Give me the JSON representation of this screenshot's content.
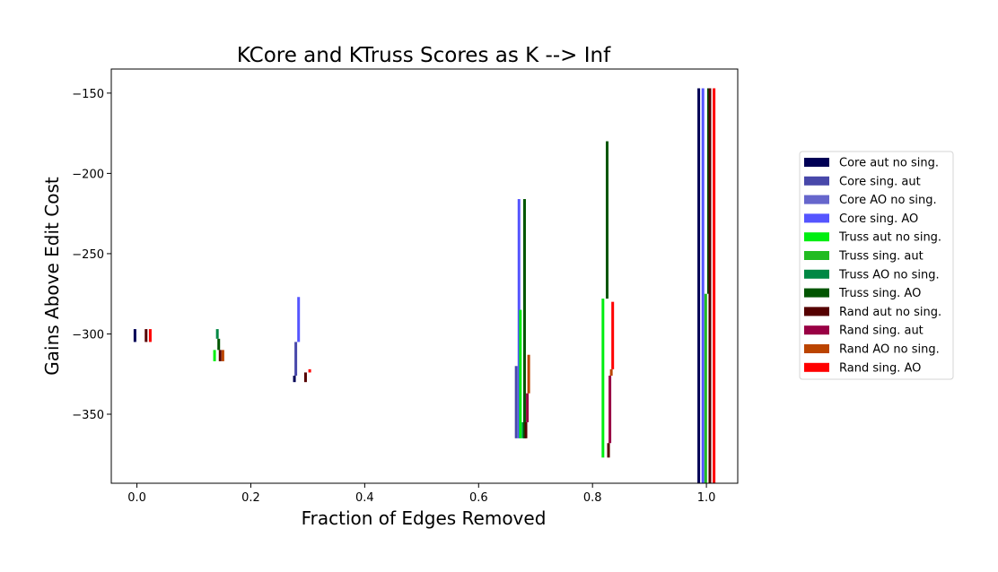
{
  "chart_data": {
    "type": "bar",
    "title": "KCore and KTruss Scores as K --> Inf",
    "xlabel": "Fraction of Edges Removed",
    "ylabel": "Gains Above Edit Cost",
    "xlim": [
      -0.045,
      1.055
    ],
    "ylim": [
      -393,
      -135
    ],
    "x_ticks": [
      0.0,
      0.2,
      0.4,
      0.6,
      0.8,
      1.0
    ],
    "x_tick_labels": [
      "0.0",
      "0.2",
      "0.4",
      "0.6",
      "0.8",
      "1.0"
    ],
    "y_ticks": [
      -150,
      -200,
      -250,
      -300,
      -350
    ],
    "y_tick_labels": [
      "−150",
      "−200",
      "−250",
      "−300",
      "−350"
    ],
    "legend_position": "right",
    "groups": [
      {
        "x": 0.01,
        "bars": [
          {
            "series": 0,
            "bottom": -305,
            "top": -297
          },
          {
            "series": 8,
            "bottom": -305,
            "top": -297
          },
          {
            "series": 11,
            "bottom": -305,
            "top": -297
          }
        ]
      },
      {
        "x": 0.14,
        "bars": [
          {
            "series": 4,
            "bottom": -317,
            "top": -310
          },
          {
            "series": 6,
            "bottom": -303,
            "top": -297
          },
          {
            "series": 7,
            "bottom": -310,
            "top": -303
          },
          {
            "series": 8,
            "bottom": -317,
            "top": -310
          },
          {
            "series": 10,
            "bottom": -317,
            "top": -310
          }
        ]
      },
      {
        "x": 0.29,
        "bars": [
          {
            "series": 0,
            "bottom": -330,
            "top": -326
          },
          {
            "series": 1,
            "bottom": -326,
            "top": -305
          },
          {
            "series": 3,
            "bottom": -305,
            "top": -277
          },
          {
            "series": 8,
            "bottom": -330,
            "top": -324
          },
          {
            "series": 11,
            "bottom": -324,
            "top": -322
          }
        ]
      },
      {
        "x": 0.677,
        "bars": [
          {
            "series": 3,
            "bottom": -365,
            "top": -216
          },
          {
            "series": 1,
            "bottom": -365,
            "top": -320
          },
          {
            "series": 4,
            "bottom": -365,
            "top": -285
          },
          {
            "series": 6,
            "bottom": -365,
            "top": -355
          },
          {
            "series": 7,
            "bottom": -365,
            "top": -216
          },
          {
            "series": 8,
            "bottom": -365,
            "top": -355
          },
          {
            "series": 9,
            "bottom": -355,
            "top": -337
          },
          {
            "series": 10,
            "bottom": -337,
            "top": -313
          }
        ]
      },
      {
        "x": 0.822,
        "bars": [
          {
            "series": 4,
            "bottom": -377,
            "top": -278
          },
          {
            "series": 7,
            "bottom": -278,
            "top": -180
          },
          {
            "series": 8,
            "bottom": -377,
            "top": -368
          },
          {
            "series": 9,
            "bottom": -368,
            "top": -326
          },
          {
            "series": 10,
            "bottom": -326,
            "top": -322
          },
          {
            "series": 11,
            "bottom": -322,
            "top": -280
          }
        ]
      },
      {
        "x": 1.0,
        "bars": [
          {
            "series": 3,
            "bottom": -393,
            "top": -147
          },
          {
            "series": 0,
            "bottom": -393,
            "top": -147
          },
          {
            "series": 5,
            "bottom": -393,
            "top": -275
          },
          {
            "series": 7,
            "bottom": -275,
            "top": -147
          },
          {
            "series": 8,
            "bottom": -393,
            "top": -147
          },
          {
            "series": 11,
            "bottom": -393,
            "top": -147
          }
        ]
      }
    ],
    "series": [
      {
        "name": "Core aut no sing.",
        "color": "#000055"
      },
      {
        "name": "Core sing. aut",
        "color": "#4848aa"
      },
      {
        "name": "Core AO no sing.",
        "color": "#6666cc"
      },
      {
        "name": "Core sing. AO",
        "color": "#5555ff"
      },
      {
        "name": "Truss aut no sing.",
        "color": "#00ee11"
      },
      {
        "name": "Truss sing. aut",
        "color": "#22bb22"
      },
      {
        "name": "Truss AO no sing.",
        "color": "#008844"
      },
      {
        "name": "Truss sing. AO",
        "color": "#005500"
      },
      {
        "name": "Rand aut no sing.",
        "color": "#550000"
      },
      {
        "name": "Rand sing. aut",
        "color": "#990044"
      },
      {
        "name": "Rand AO no sing.",
        "color": "#bb4400"
      },
      {
        "name": "Rand sing. AO",
        "color": "#ff0000"
      }
    ]
  }
}
